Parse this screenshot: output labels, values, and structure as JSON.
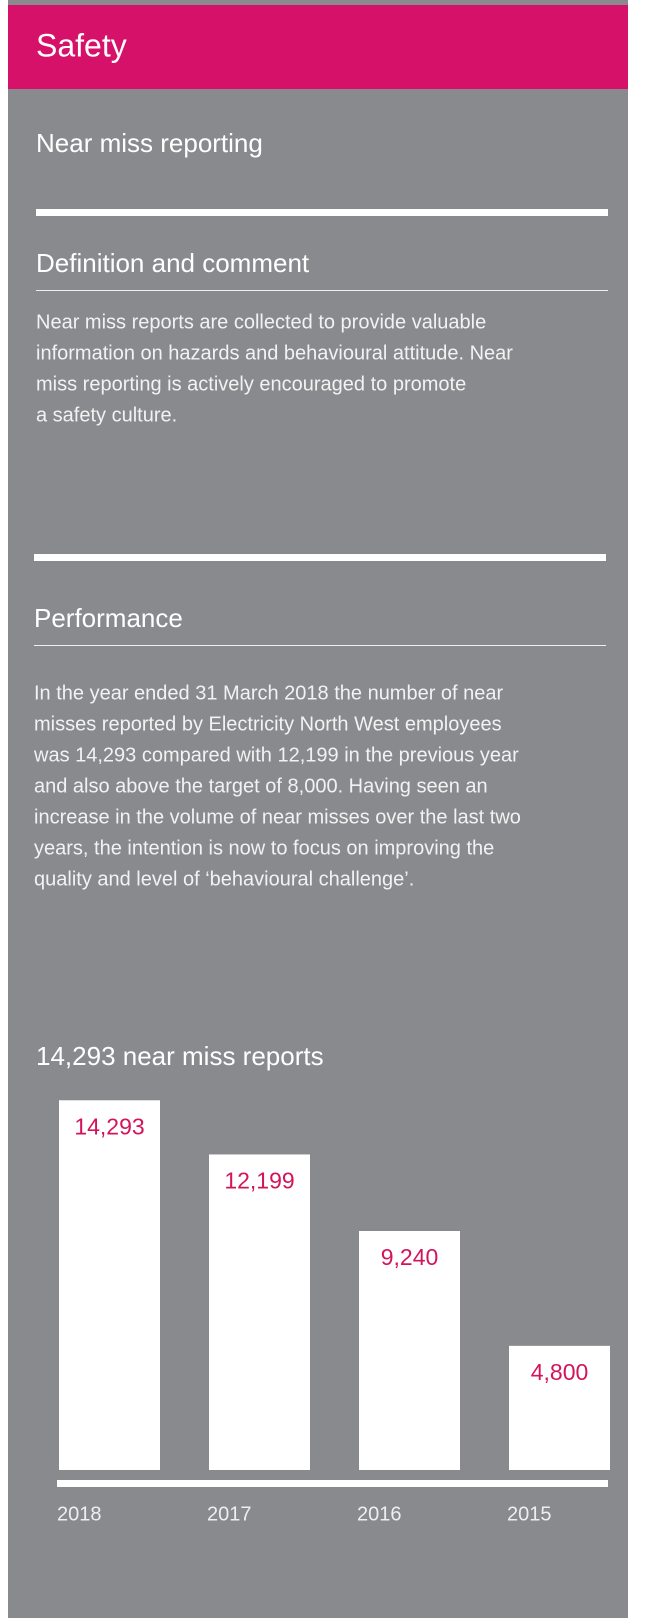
{
  "header": {
    "title": "Safety"
  },
  "subtitle": "Near miss reporting",
  "sections": [
    {
      "heading": "Definition and comment",
      "lines": [
        "Near miss reports are collected to provide valuable",
        "information on hazards and behavioural attitude. Near",
        "miss reporting is actively encouraged to promote",
        "a safety culture."
      ]
    },
    {
      "heading": "Performance",
      "lines": [
        "In the year ended 31 March 2018 the number of near",
        "misses reported by Electricity North West employees",
        "was 14,293 compared with 12,199 in the previous year",
        "and also above the target of 8,000. Having seen an",
        "increase in the volume of near misses over the last two",
        "years, the intention is now to focus on improving the",
        "quality and level of ‘behavioural challenge’."
      ]
    }
  ],
  "chart_data": {
    "type": "bar",
    "title": "14,293 near miss reports",
    "categories": [
      "2018",
      "2017",
      "2016",
      "2015"
    ],
    "values": [
      14293,
      12199,
      9240,
      4800
    ],
    "value_labels": [
      "14,293",
      "12,199",
      "9,240",
      "4,800"
    ],
    "color": "#ffffff",
    "label_color": "#d4145a",
    "ylim": [
      0,
      15000
    ]
  }
}
